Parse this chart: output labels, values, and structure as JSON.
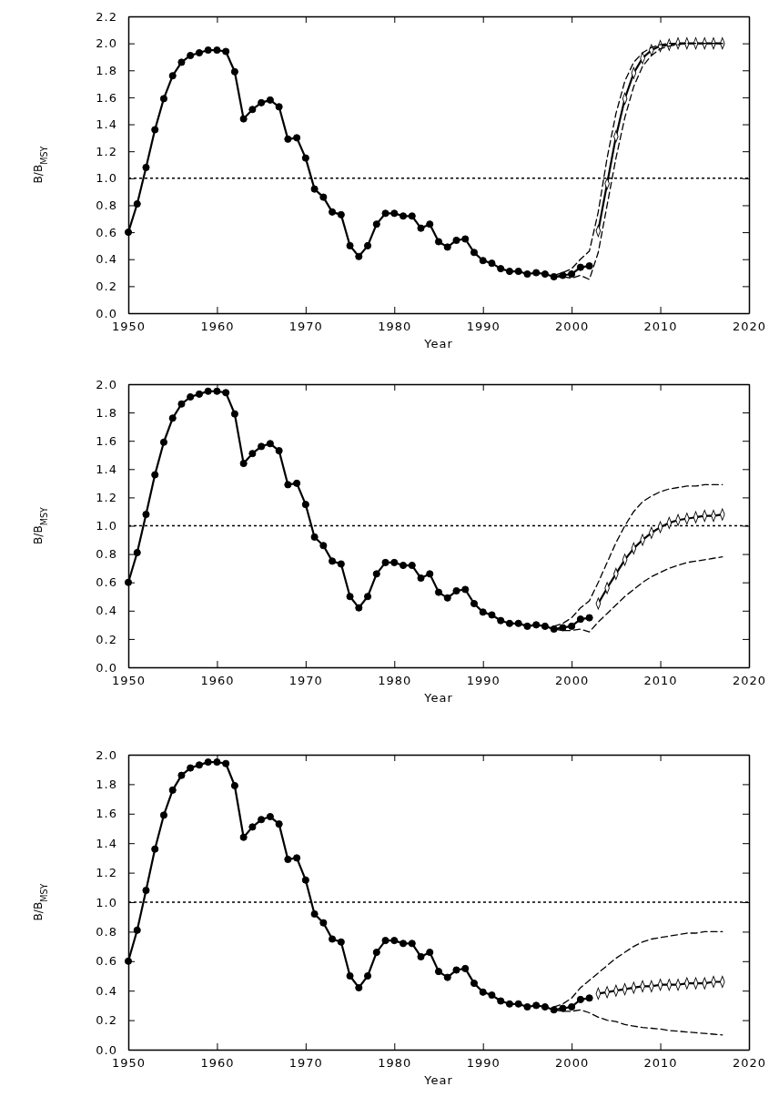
{
  "chart_data": [
    {
      "type": "line",
      "xlabel": "Year",
      "ylabel": "B/B$_{MSY}$",
      "xlim": [
        1950,
        2020
      ],
      "xticks": [
        1950,
        1960,
        1970,
        1980,
        1990,
        2000,
        2010,
        2020
      ],
      "ylim": [
        0,
        2.2
      ],
      "yticks": [
        {
          "value": 0,
          "label": "0.0"
        },
        {
          "value": 0.2,
          "label": "0.2"
        },
        {
          "value": 0.4,
          "label": "0.4"
        },
        {
          "value": 0.6,
          "label": "0.6"
        },
        {
          "value": 0.8,
          "label": "0.8"
        },
        {
          "value": 1,
          "label": "1.0"
        },
        {
          "value": 1.2,
          "label": "1.2"
        },
        {
          "value": 1.4,
          "label": "1.4"
        },
        {
          "value": 1.6,
          "label": "1.6"
        },
        {
          "value": 1.8,
          "label": "1.8"
        },
        {
          "value": 2,
          "label": "2.0"
        },
        {
          "value": 2.2,
          "label": "2.2"
        }
      ],
      "ref_lines": [
        {
          "axis": "y",
          "value": 1,
          "line_style": "dotted",
          "color": "#000000"
        }
      ],
      "series": [
        {
          "color": "#000000",
          "marker": "circle",
          "line_style": "solid",
          "x": [
            1950,
            1951,
            1952,
            1953,
            1954,
            1955,
            1956,
            1957,
            1958,
            1959,
            1960,
            1961,
            1962,
            1963,
            1964,
            1965,
            1966,
            1967,
            1968,
            1969,
            1970,
            1971,
            1972,
            1973,
            1974,
            1975,
            1976,
            1977,
            1978,
            1979,
            1980,
            1981,
            1982,
            1983,
            1984,
            1985,
            1986,
            1987,
            1988,
            1989,
            1990,
            1991,
            1992,
            1993,
            1994,
            1995,
            1996,
            1997,
            1998,
            1999,
            2000,
            2001,
            2002
          ],
          "values": [
            0.6,
            0.81,
            1.08,
            1.36,
            1.59,
            1.76,
            1.86,
            1.91,
            1.93,
            1.95,
            1.95,
            1.94,
            1.79,
            1.44,
            1.51,
            1.56,
            1.58,
            1.53,
            1.29,
            1.3,
            1.15,
            0.92,
            0.86,
            0.75,
            0.73,
            0.5,
            0.42,
            0.5,
            0.66,
            0.74,
            0.74,
            0.72,
            0.72,
            0.63,
            0.66,
            0.53,
            0.49,
            0.54,
            0.55,
            0.45,
            0.39,
            0.37,
            0.33,
            0.31,
            0.31,
            0.29,
            0.3,
            0.29,
            0.27,
            0.28,
            0.29,
            0.34,
            0.35
          ]
        },
        {
          "color": "#000000",
          "marker": "diamond",
          "line_style": "solid",
          "x": [
            2003,
            2004,
            2005,
            2006,
            2007,
            2008,
            2009,
            2010,
            2011,
            2012,
            2013,
            2014,
            2015,
            2016,
            2017
          ],
          "values": [
            0.61,
            0.96,
            1.31,
            1.59,
            1.78,
            1.89,
            1.95,
            1.98,
            1.99,
            2.0,
            2.0,
            2.0,
            2.0,
            2.0,
            2.0
          ]
        },
        {
          "color": "#000000",
          "marker": "none",
          "line_style": "dashed",
          "x": [
            1998,
            1999,
            2000,
            2001,
            2002,
            2003,
            2004,
            2005,
            2006,
            2007,
            2008,
            2009,
            2010,
            2011,
            2012,
            2013,
            2014,
            2015,
            2016,
            2017
          ],
          "values": [
            0.28,
            0.3,
            0.33,
            0.4,
            0.46,
            0.75,
            1.15,
            1.48,
            1.72,
            1.86,
            1.93,
            1.97,
            1.99,
            2.0,
            2.0,
            2.0,
            2.0,
            2.0,
            2.0,
            2.0
          ]
        },
        {
          "color": "#000000",
          "marker": "none",
          "line_style": "dashed",
          "x": [
            1998,
            1999,
            2000,
            2001,
            2002,
            2003,
            2004,
            2005,
            2006,
            2007,
            2008,
            2009,
            2010,
            2011,
            2012,
            2013,
            2014,
            2015,
            2016,
            2017
          ],
          "values": [
            0.27,
            0.27,
            0.26,
            0.28,
            0.25,
            0.45,
            0.8,
            1.15,
            1.45,
            1.68,
            1.83,
            1.91,
            1.96,
            1.98,
            1.99,
            2.0,
            2.0,
            2.0,
            2.0,
            2.0
          ]
        }
      ]
    },
    {
      "type": "line",
      "xlabel": "Year",
      "ylabel": "B/B$_{MSY}$",
      "xlim": [
        1950,
        2020
      ],
      "xticks": [
        1950,
        1960,
        1970,
        1980,
        1990,
        2000,
        2010,
        2020
      ],
      "ylim": [
        0,
        2.0
      ],
      "yticks": [
        {
          "value": 0,
          "label": "0.0"
        },
        {
          "value": 0.2,
          "label": "0.2"
        },
        {
          "value": 0.4,
          "label": "0.4"
        },
        {
          "value": 0.6,
          "label": "0.6"
        },
        {
          "value": 0.8,
          "label": "0.8"
        },
        {
          "value": 1,
          "label": "1.0"
        },
        {
          "value": 1.2,
          "label": "1.2"
        },
        {
          "value": 1.4,
          "label": "1.4"
        },
        {
          "value": 1.6,
          "label": "1.6"
        },
        {
          "value": 1.8,
          "label": "1.8"
        },
        {
          "value": 2,
          "label": "2.0"
        }
      ],
      "ref_lines": [
        {
          "axis": "y",
          "value": 1,
          "line_style": "dotted",
          "color": "#000000"
        }
      ],
      "series": [
        {
          "color": "#000000",
          "marker": "circle",
          "line_style": "solid",
          "x": [
            1950,
            1951,
            1952,
            1953,
            1954,
            1955,
            1956,
            1957,
            1958,
            1959,
            1960,
            1961,
            1962,
            1963,
            1964,
            1965,
            1966,
            1967,
            1968,
            1969,
            1970,
            1971,
            1972,
            1973,
            1974,
            1975,
            1976,
            1977,
            1978,
            1979,
            1980,
            1981,
            1982,
            1983,
            1984,
            1985,
            1986,
            1987,
            1988,
            1989,
            1990,
            1991,
            1992,
            1993,
            1994,
            1995,
            1996,
            1997,
            1998,
            1999,
            2000,
            2001,
            2002
          ],
          "values": [
            0.6,
            0.81,
            1.08,
            1.36,
            1.59,
            1.76,
            1.86,
            1.91,
            1.93,
            1.95,
            1.95,
            1.94,
            1.79,
            1.44,
            1.51,
            1.56,
            1.58,
            1.53,
            1.29,
            1.3,
            1.15,
            0.92,
            0.86,
            0.75,
            0.73,
            0.5,
            0.42,
            0.5,
            0.66,
            0.74,
            0.74,
            0.72,
            0.72,
            0.63,
            0.66,
            0.53,
            0.49,
            0.54,
            0.55,
            0.45,
            0.39,
            0.37,
            0.33,
            0.31,
            0.31,
            0.29,
            0.3,
            0.29,
            0.27,
            0.28,
            0.29,
            0.34,
            0.35
          ]
        },
        {
          "color": "#000000",
          "marker": "diamond",
          "line_style": "solid",
          "x": [
            2003,
            2004,
            2005,
            2006,
            2007,
            2008,
            2009,
            2010,
            2011,
            2012,
            2013,
            2014,
            2015,
            2016,
            2017
          ],
          "values": [
            0.45,
            0.56,
            0.66,
            0.76,
            0.84,
            0.9,
            0.95,
            0.99,
            1.02,
            1.04,
            1.05,
            1.06,
            1.07,
            1.07,
            1.08
          ]
        },
        {
          "color": "#000000",
          "marker": "none",
          "line_style": "dashed",
          "x": [
            1998,
            1999,
            2000,
            2001,
            2002,
            2003,
            2004,
            2005,
            2006,
            2007,
            2008,
            2009,
            2010,
            2011,
            2012,
            2013,
            2014,
            2015,
            2016,
            2017
          ],
          "values": [
            0.29,
            0.31,
            0.35,
            0.42,
            0.47,
            0.6,
            0.74,
            0.88,
            1.0,
            1.1,
            1.17,
            1.21,
            1.24,
            1.26,
            1.27,
            1.28,
            1.28,
            1.29,
            1.29,
            1.29
          ]
        },
        {
          "color": "#000000",
          "marker": "none",
          "line_style": "dashed",
          "x": [
            1998,
            1999,
            2000,
            2001,
            2002,
            2003,
            2004,
            2005,
            2006,
            2007,
            2008,
            2009,
            2010,
            2011,
            2012,
            2013,
            2014,
            2015,
            2016,
            2017
          ],
          "values": [
            0.27,
            0.26,
            0.26,
            0.27,
            0.25,
            0.32,
            0.38,
            0.44,
            0.5,
            0.55,
            0.6,
            0.64,
            0.67,
            0.7,
            0.72,
            0.74,
            0.75,
            0.76,
            0.77,
            0.78
          ]
        }
      ]
    },
    {
      "type": "line",
      "xlabel": "Year",
      "ylabel": "B/B$_{MSY}$",
      "xlim": [
        1950,
        2020
      ],
      "xticks": [
        1950,
        1960,
        1970,
        1980,
        1990,
        2000,
        2010,
        2020
      ],
      "ylim": [
        0,
        2.0
      ],
      "yticks": [
        {
          "value": 0,
          "label": "0.0"
        },
        {
          "value": 0.2,
          "label": "0.2"
        },
        {
          "value": 0.4,
          "label": "0.4"
        },
        {
          "value": 0.6,
          "label": "0.6"
        },
        {
          "value": 0.8,
          "label": "0.8"
        },
        {
          "value": 1,
          "label": "1.0"
        },
        {
          "value": 1.2,
          "label": "1.2"
        },
        {
          "value": 1.4,
          "label": "1.4"
        },
        {
          "value": 1.6,
          "label": "1.6"
        },
        {
          "value": 1.8,
          "label": "1.8"
        },
        {
          "value": 2,
          "label": "2.0"
        }
      ],
      "ref_lines": [
        {
          "axis": "y",
          "value": 1,
          "line_style": "dotted",
          "color": "#000000"
        }
      ],
      "series": [
        {
          "color": "#000000",
          "marker": "circle",
          "line_style": "solid",
          "x": [
            1950,
            1951,
            1952,
            1953,
            1954,
            1955,
            1956,
            1957,
            1958,
            1959,
            1960,
            1961,
            1962,
            1963,
            1964,
            1965,
            1966,
            1967,
            1968,
            1969,
            1970,
            1971,
            1972,
            1973,
            1974,
            1975,
            1976,
            1977,
            1978,
            1979,
            1980,
            1981,
            1982,
            1983,
            1984,
            1985,
            1986,
            1987,
            1988,
            1989,
            1990,
            1991,
            1992,
            1993,
            1994,
            1995,
            1996,
            1997,
            1998,
            1999,
            2000,
            2001,
            2002
          ],
          "values": [
            0.6,
            0.81,
            1.08,
            1.36,
            1.59,
            1.76,
            1.86,
            1.91,
            1.93,
            1.95,
            1.95,
            1.94,
            1.79,
            1.44,
            1.51,
            1.56,
            1.58,
            1.53,
            1.29,
            1.3,
            1.15,
            0.92,
            0.86,
            0.75,
            0.73,
            0.5,
            0.42,
            0.5,
            0.66,
            0.74,
            0.74,
            0.72,
            0.72,
            0.63,
            0.66,
            0.53,
            0.49,
            0.54,
            0.55,
            0.45,
            0.39,
            0.37,
            0.33,
            0.31,
            0.31,
            0.29,
            0.3,
            0.29,
            0.27,
            0.28,
            0.29,
            0.34,
            0.35
          ]
        },
        {
          "color": "#000000",
          "marker": "diamond",
          "line_style": "solid",
          "x": [
            2003,
            2004,
            2005,
            2006,
            2007,
            2008,
            2009,
            2010,
            2011,
            2012,
            2013,
            2014,
            2015,
            2016,
            2017
          ],
          "values": [
            0.38,
            0.39,
            0.4,
            0.41,
            0.42,
            0.43,
            0.43,
            0.44,
            0.44,
            0.44,
            0.45,
            0.45,
            0.45,
            0.46,
            0.46
          ]
        },
        {
          "color": "#000000",
          "marker": "none",
          "line_style": "dashed",
          "x": [
            1998,
            1999,
            2000,
            2001,
            2002,
            2003,
            2004,
            2005,
            2006,
            2007,
            2008,
            2009,
            2010,
            2011,
            2012,
            2013,
            2014,
            2015,
            2016,
            2017
          ],
          "values": [
            0.29,
            0.31,
            0.35,
            0.42,
            0.47,
            0.52,
            0.57,
            0.62,
            0.66,
            0.7,
            0.73,
            0.75,
            0.76,
            0.77,
            0.78,
            0.79,
            0.79,
            0.8,
            0.8,
            0.8
          ]
        },
        {
          "color": "#000000",
          "marker": "none",
          "line_style": "dashed",
          "x": [
            1998,
            1999,
            2000,
            2001,
            2002,
            2003,
            2004,
            2005,
            2006,
            2007,
            2008,
            2009,
            2010,
            2011,
            2012,
            2013,
            2014,
            2015,
            2016,
            2017
          ],
          "values": [
            0.27,
            0.26,
            0.26,
            0.27,
            0.25,
            0.22,
            0.2,
            0.19,
            0.17,
            0.16,
            0.15,
            0.145,
            0.14,
            0.13,
            0.125,
            0.12,
            0.115,
            0.11,
            0.105,
            0.1
          ]
        }
      ]
    }
  ]
}
